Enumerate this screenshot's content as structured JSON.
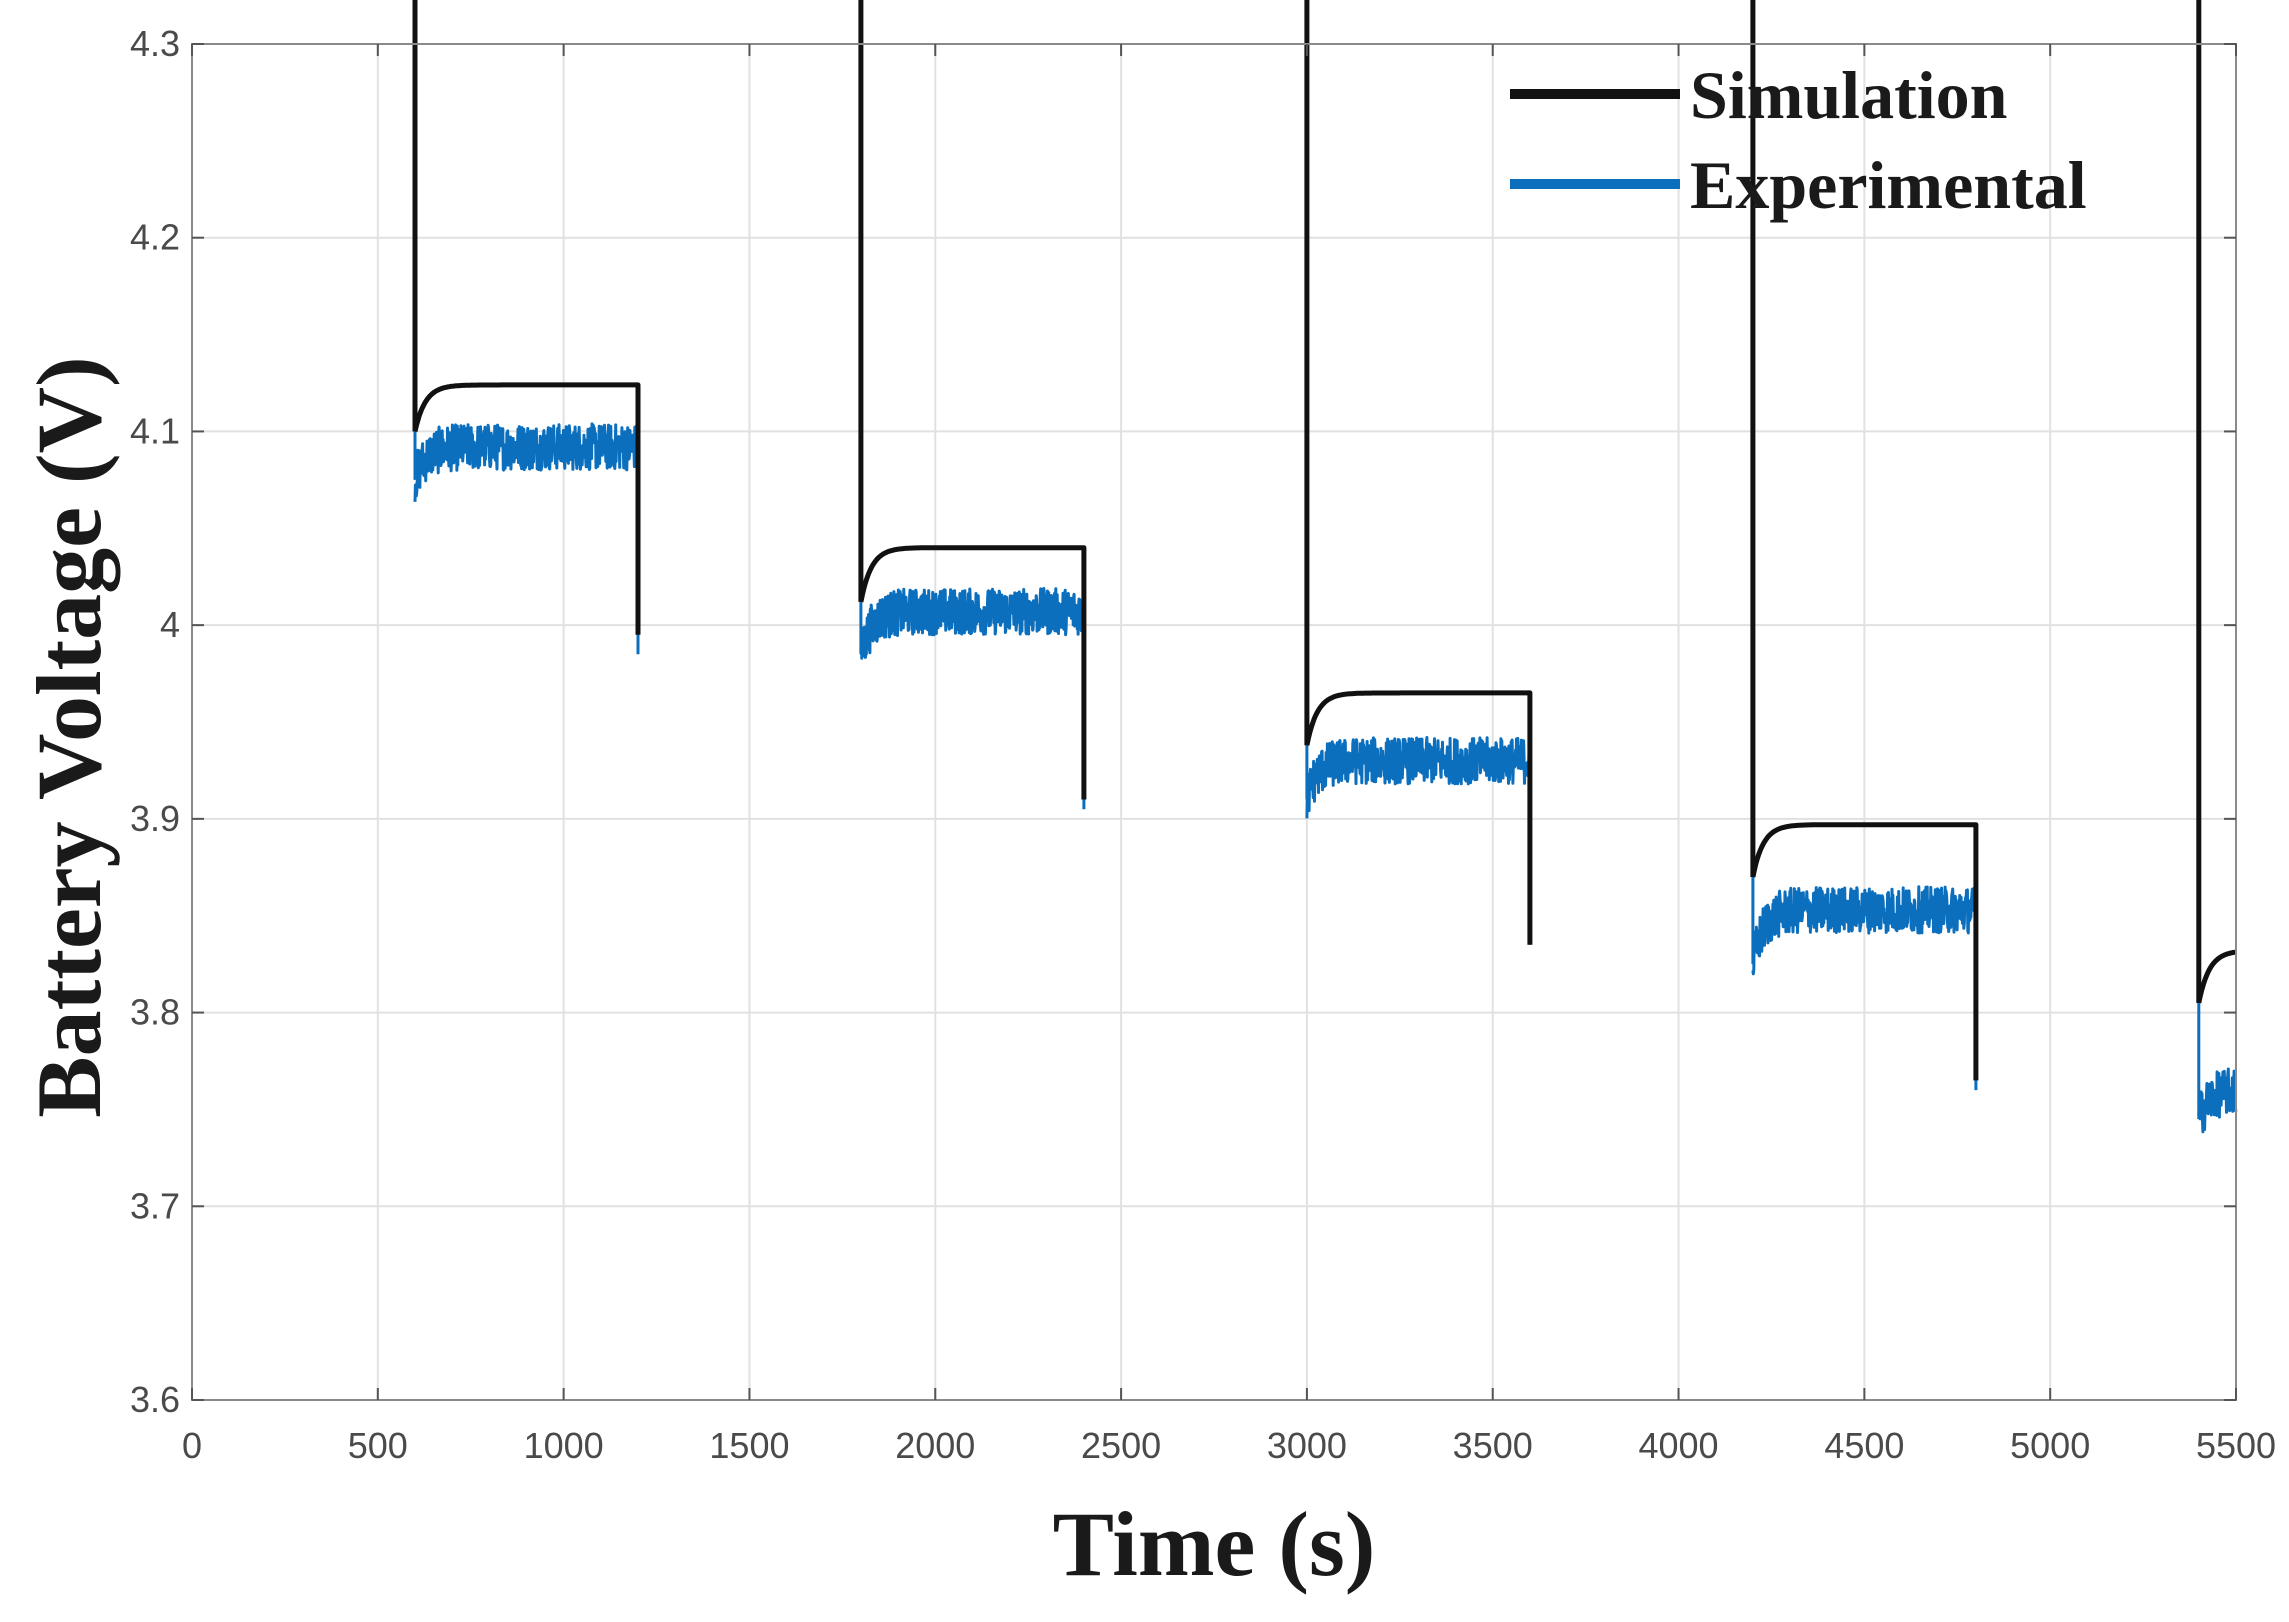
{
  "chart_data": {
    "type": "line",
    "title": "",
    "xlabel": "Time (s)",
    "ylabel": "Battery Voltage (V)",
    "xlim": [
      0,
      5500
    ],
    "ylim": [
      3.6,
      4.3
    ],
    "grid": true,
    "legend_position": "top-right",
    "x_ticks": [
      0,
      500,
      1000,
      1500,
      2000,
      2500,
      3000,
      3500,
      4000,
      4500,
      5000,
      5500
    ],
    "x_tick_labels": [
      "0",
      "500",
      "1000",
      "1500",
      "2000",
      "2500",
      "3000",
      "3500",
      "4000",
      "4500",
      "5000",
      "5500"
    ],
    "y_ticks": [
      3.6,
      3.7,
      3.8,
      3.9,
      4.0,
      4.1,
      4.2,
      4.3
    ],
    "y_tick_labels": [
      "3.6",
      "3.7",
      "3.8",
      "3.9",
      "4",
      "4.1",
      "4.2",
      "4.3"
    ],
    "pulse_period_s": 600,
    "series": [
      {
        "name": "Simulation",
        "color": "#111111",
        "segments": [
          {
            "phase": "discharge",
            "t0": 0,
            "t1": 600,
            "v_start": 4.075,
            "v_end": 3.972
          },
          {
            "phase": "rest",
            "t0": 600,
            "t1": 1200,
            "v_start": 4.1,
            "v_plateau": 4.124
          },
          {
            "phase": "discharge",
            "t0": 1200,
            "t1": 1800,
            "v_start": 3.995,
            "v_end": 3.887
          },
          {
            "phase": "rest",
            "t0": 1800,
            "t1": 2400,
            "v_start": 4.012,
            "v_plateau": 4.04
          },
          {
            "phase": "discharge",
            "t0": 2400,
            "t1": 3000,
            "v_start": 3.91,
            "v_end": 3.812
          },
          {
            "phase": "rest",
            "t0": 3000,
            "t1": 3600,
            "v_start": 3.938,
            "v_plateau": 3.965
          },
          {
            "phase": "discharge",
            "t0": 3600,
            "t1": 4200,
            "v_start": 3.835,
            "v_end": 3.744
          },
          {
            "phase": "rest",
            "t0": 4200,
            "t1": 4800,
            "v_start": 3.87,
            "v_plateau": 3.897
          },
          {
            "phase": "discharge",
            "t0": 4800,
            "t1": 5400,
            "v_start": 3.765,
            "v_end": 3.68
          },
          {
            "phase": "rest",
            "t0": 5400,
            "t1": 5500,
            "v_start": 3.805,
            "v_plateau": 3.832
          }
        ]
      },
      {
        "name": "Experimental",
        "color": "#0b6fbe",
        "noise_amplitude_v": 0.012,
        "segments": [
          {
            "phase": "discharge",
            "t0": 0,
            "t1": 600,
            "v_start": 4.225,
            "v_end": 3.967
          },
          {
            "phase": "rest",
            "t0": 600,
            "t1": 1200,
            "v_start": 4.075,
            "v_plateau": 4.092
          },
          {
            "phase": "discharge",
            "t0": 1200,
            "t1": 1800,
            "v_start": 3.985,
            "v_end": 3.885
          },
          {
            "phase": "rest",
            "t0": 1800,
            "t1": 2400,
            "v_start": 3.985,
            "v_plateau": 4.007
          },
          {
            "phase": "discharge",
            "t0": 2400,
            "t1": 3000,
            "v_start": 3.905,
            "v_end": 3.797
          },
          {
            "phase": "rest",
            "t0": 3000,
            "t1": 3600,
            "v_start": 3.91,
            "v_plateau": 3.93
          },
          {
            "phase": "discharge",
            "t0": 3600,
            "t1": 4200,
            "v_start": 3.835,
            "v_end": 3.725
          },
          {
            "phase": "rest",
            "t0": 4200,
            "t1": 4800,
            "v_start": 3.825,
            "v_plateau": 3.853
          },
          {
            "phase": "discharge",
            "t0": 4800,
            "t1": 5400,
            "v_start": 3.76,
            "v_end": 3.645
          },
          {
            "phase": "rest",
            "t0": 5400,
            "t1": 5500,
            "v_start": 3.745,
            "v_plateau": 3.76
          }
        ]
      }
    ]
  }
}
